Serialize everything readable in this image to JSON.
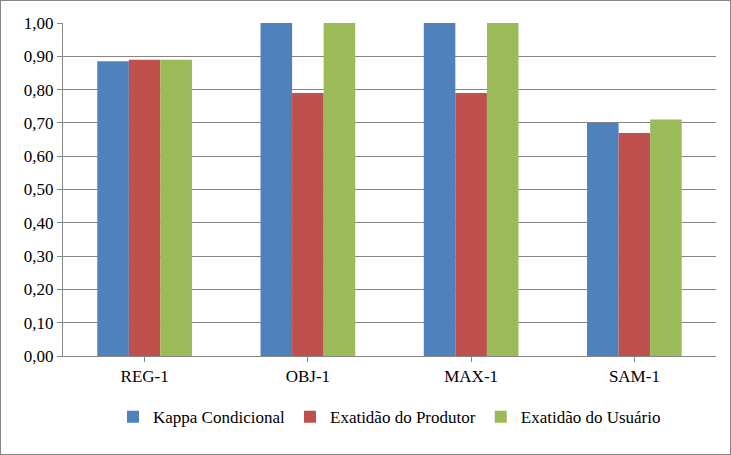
{
  "chart_data": {
    "type": "bar",
    "categories": [
      "REG-1",
      "OBJ-1",
      "MAX-1",
      "SAM-1"
    ],
    "series": [
      {
        "name": "Kappa Condicional",
        "color": "#4f81bd",
        "values": [
          0.885,
          1.0,
          1.0,
          0.7
        ]
      },
      {
        "name": "Exatidão do Produtor",
        "color": "#c0504d",
        "values": [
          0.89,
          0.79,
          0.79,
          0.67
        ]
      },
      {
        "name": "Exatidão do Usuário",
        "color": "#9bbb59",
        "values": [
          0.89,
          1.0,
          1.0,
          0.71
        ]
      }
    ],
    "ylim": [
      0,
      1
    ],
    "yticks": [
      {
        "value": 0,
        "label": "0,00"
      },
      {
        "value": 0.1,
        "label": "0,10"
      },
      {
        "value": 0.2,
        "label": "0,20"
      },
      {
        "value": 0.3,
        "label": "0,30"
      },
      {
        "value": 0.4,
        "label": "0,40"
      },
      {
        "value": 0.5,
        "label": "0,50"
      },
      {
        "value": 0.6,
        "label": "0,60"
      },
      {
        "value": 0.7,
        "label": "0,70"
      },
      {
        "value": 0.8,
        "label": "0,80"
      },
      {
        "value": 0.9,
        "label": "0,90"
      },
      {
        "value": 1,
        "label": "1,00"
      }
    ],
    "grid": true,
    "legend": "bottom"
  }
}
